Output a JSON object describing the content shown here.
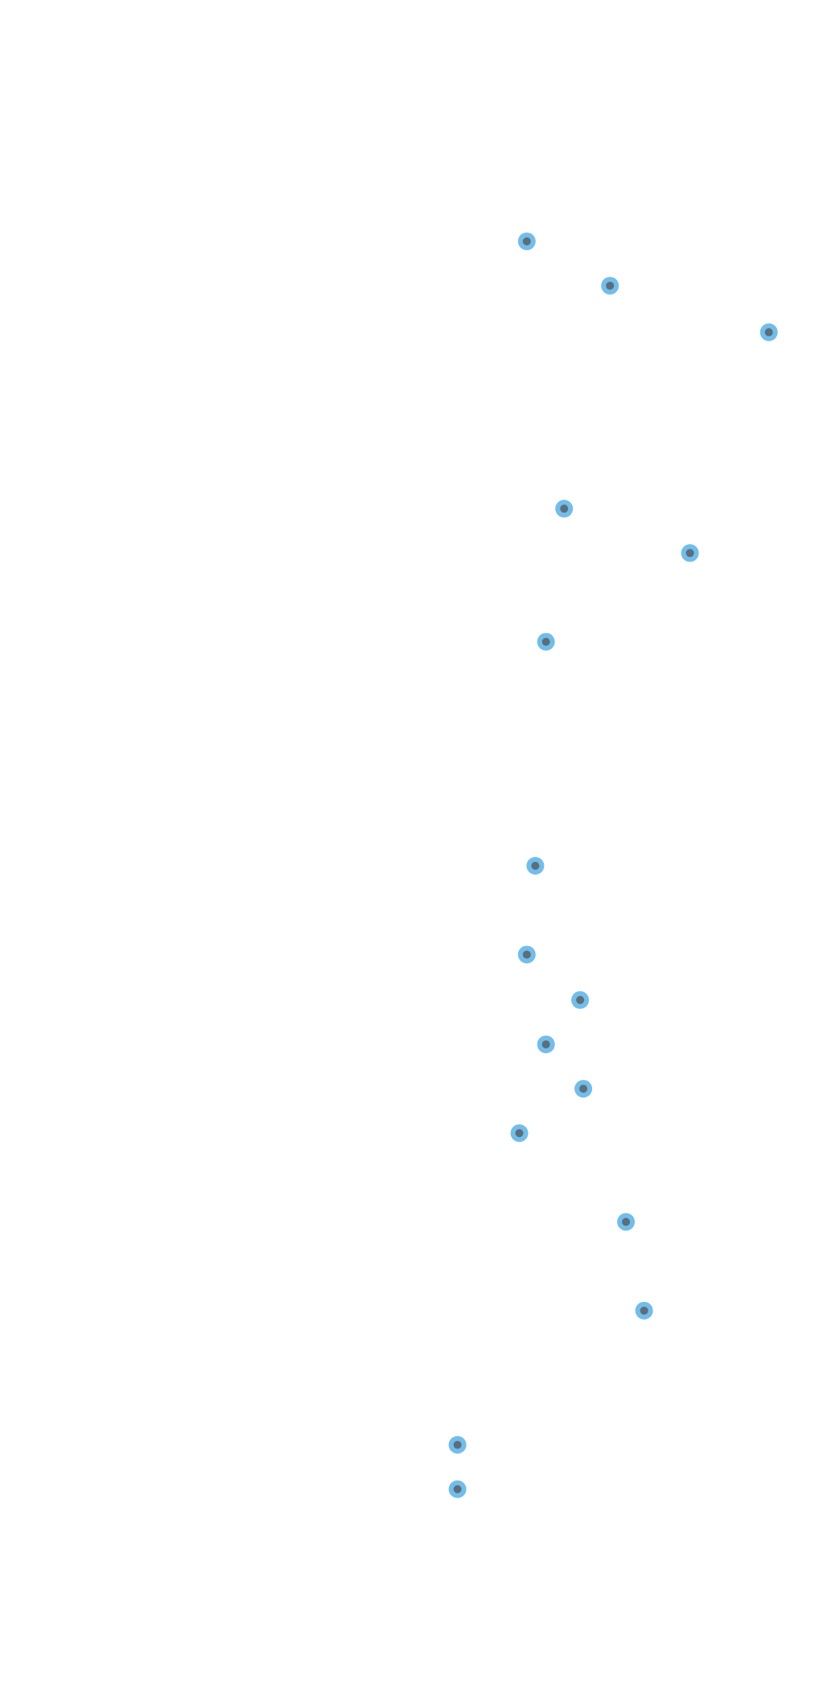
{
  "chart_data": {
    "type": "scatter",
    "title": "",
    "xlabel": "",
    "ylabel": "",
    "grid": false,
    "legend": "none",
    "axes_visible": false,
    "colors": {
      "point_fill": "#5a6e7e",
      "point_ring": "#73bde8",
      "background": "#ffffff"
    },
    "xlim": [
      0,
      768
    ],
    "ylim": [
      0,
      1568
    ],
    "points": [
      {
        "x": 494,
        "y": 223
      },
      {
        "x": 572,
        "y": 264
      },
      {
        "x": 721,
        "y": 307
      },
      {
        "x": 529,
        "y": 470
      },
      {
        "x": 647,
        "y": 511
      },
      {
        "x": 512,
        "y": 593
      },
      {
        "x": 502,
        "y": 800
      },
      {
        "x": 494,
        "y": 882
      },
      {
        "x": 544,
        "y": 924
      },
      {
        "x": 512,
        "y": 965
      },
      {
        "x": 547,
        "y": 1006
      },
      {
        "x": 487,
        "y": 1047
      },
      {
        "x": 587,
        "y": 1129
      },
      {
        "x": 604,
        "y": 1211
      },
      {
        "x": 429,
        "y": 1335
      },
      {
        "x": 429,
        "y": 1376
      }
    ]
  }
}
